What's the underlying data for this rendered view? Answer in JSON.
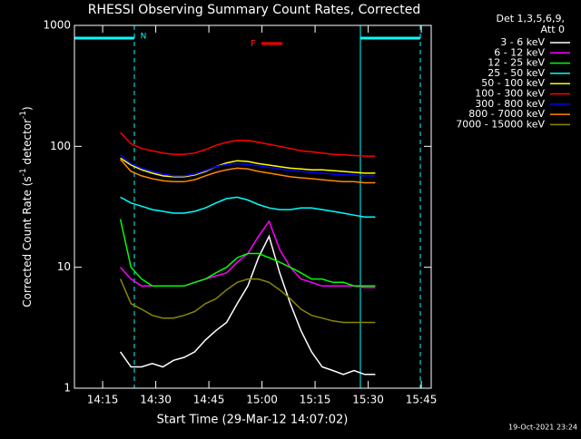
{
  "chart_data": {
    "type": "line",
    "title": "RHESSI Observing Summary Count Rates, Corrected",
    "x_label": "Start Time (29-Mar-12 14:07:02)",
    "y_label": [
      "Corrected Count Rate (s",
      "-1",
      " detector",
      "-1",
      ")"
    ],
    "legend_header": [
      "Det 1,3,5,6,9,",
      "Att 0"
    ],
    "annotations": {
      "night": "N",
      "flare": "F"
    },
    "timestamp": "19-Oct-2021 23:24",
    "log_y": true,
    "xlim": [
      847.03,
      947.8
    ],
    "ylim": [
      1,
      1000
    ],
    "xticks": [
      {
        "value": 855,
        "label": "14:15"
      },
      {
        "value": 870,
        "label": "14:30"
      },
      {
        "value": 885,
        "label": "14:45"
      },
      {
        "value": 900,
        "label": "15:00"
      },
      {
        "value": 915,
        "label": "15:15"
      },
      {
        "value": 930,
        "label": "15:30"
      },
      {
        "value": 945,
        "label": "15:45"
      }
    ],
    "yticks": [
      1,
      10,
      100,
      1000
    ],
    "x": [
      860,
      863,
      866,
      869,
      872,
      875,
      878,
      881,
      884,
      887,
      890,
      893,
      896,
      899,
      902,
      905,
      908,
      911,
      914,
      917,
      920,
      923,
      926,
      929,
      932
    ],
    "series": [
      {
        "name": "3 - 6 keV",
        "color": "#ffffff",
        "values": [
          2,
          1.5,
          1.5,
          1.6,
          1.5,
          1.7,
          1.8,
          2,
          2.5,
          3,
          3.5,
          5,
          7,
          12,
          18,
          9,
          5,
          3,
          2,
          1.5,
          1.4,
          1.3,
          1.4,
          1.3,
          1.3
        ]
      },
      {
        "name": "6 - 12 keV",
        "color": "#ff00ff",
        "values": [
          10,
          8,
          7,
          7,
          7,
          7,
          7,
          7.5,
          8,
          8.5,
          9,
          11,
          13,
          18,
          24,
          14,
          10,
          8,
          7.5,
          7,
          7,
          7,
          7,
          6.8,
          6.8
        ]
      },
      {
        "name": "12 - 25 keV",
        "color": "#00ff00",
        "values": [
          25,
          10,
          8,
          7,
          7,
          7,
          7,
          7.5,
          8,
          9,
          10,
          12,
          13,
          13,
          12,
          11,
          10,
          9,
          8,
          8,
          7.5,
          7.5,
          7,
          7,
          7
        ]
      },
      {
        "name": "25 - 50 keV",
        "color": "#00ffff",
        "values": [
          38,
          34,
          32,
          30,
          29,
          28,
          28,
          29,
          31,
          34,
          37,
          38,
          36,
          33,
          31,
          30,
          30,
          31,
          31,
          30,
          29,
          28,
          27,
          26,
          26
        ]
      },
      {
        "name": "50 - 100 keV",
        "color": "#ffff00",
        "values": [
          80,
          70,
          64,
          60,
          57,
          56,
          56,
          58,
          62,
          68,
          73,
          76,
          75,
          72,
          70,
          68,
          66,
          65,
          64,
          64,
          63,
          62,
          61,
          60,
          60
        ]
      },
      {
        "name": "100 - 300 keV",
        "color": "#ff0000",
        "values": [
          130,
          105,
          96,
          92,
          88,
          86,
          86,
          88,
          94,
          102,
          108,
          112,
          112,
          108,
          104,
          100,
          96,
          92,
          90,
          88,
          86,
          85,
          84,
          83,
          83
        ]
      },
      {
        "name": "300 - 800 keV",
        "color": "#0000ff",
        "values": [
          85,
          72,
          66,
          62,
          59,
          57,
          57,
          59,
          63,
          68,
          71,
          72,
          71,
          69,
          67,
          65,
          63,
          62,
          61,
          60,
          59,
          58,
          58,
          57,
          57
        ]
      },
      {
        "name": "800 - 7000 keV",
        "color": "#ff8800",
        "values": [
          78,
          62,
          57,
          54,
          52,
          51,
          51,
          53,
          57,
          61,
          64,
          66,
          65,
          62,
          60,
          58,
          56,
          55,
          54,
          53,
          52,
          51,
          51,
          50,
          50
        ]
      },
      {
        "name": "7000 - 15000 keV",
        "color": "#888800",
        "values": [
          8,
          5,
          4.5,
          4,
          3.8,
          3.8,
          4,
          4.3,
          5,
          5.5,
          6.5,
          7.5,
          8,
          8,
          7.5,
          6.5,
          5.5,
          4.5,
          4,
          3.8,
          3.6,
          3.5,
          3.5,
          3.5,
          3.5
        ]
      }
    ]
  }
}
